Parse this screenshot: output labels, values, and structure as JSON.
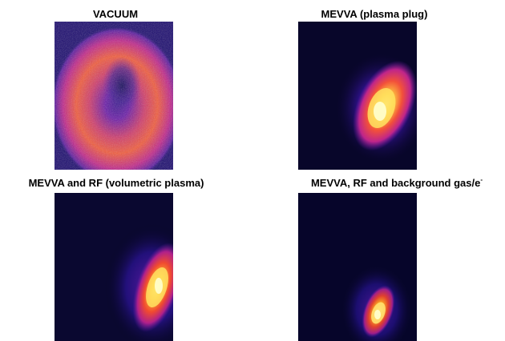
{
  "panels": [
    {
      "title": "VACUUM"
    },
    {
      "title": "MEVVA (plasma plug)"
    },
    {
      "title": "MEVVA and RF (volumetric plasma)"
    },
    {
      "title": "MEVVA, RF and background gas/e",
      "title_superscript": "-"
    }
  ],
  "colors": {
    "background": "#ffffff",
    "colormap": [
      "#05051f",
      "#1a0a6e",
      "#6a1aa8",
      "#c0258a",
      "#f2503a",
      "#ffb020",
      "#ffffa0"
    ]
  }
}
